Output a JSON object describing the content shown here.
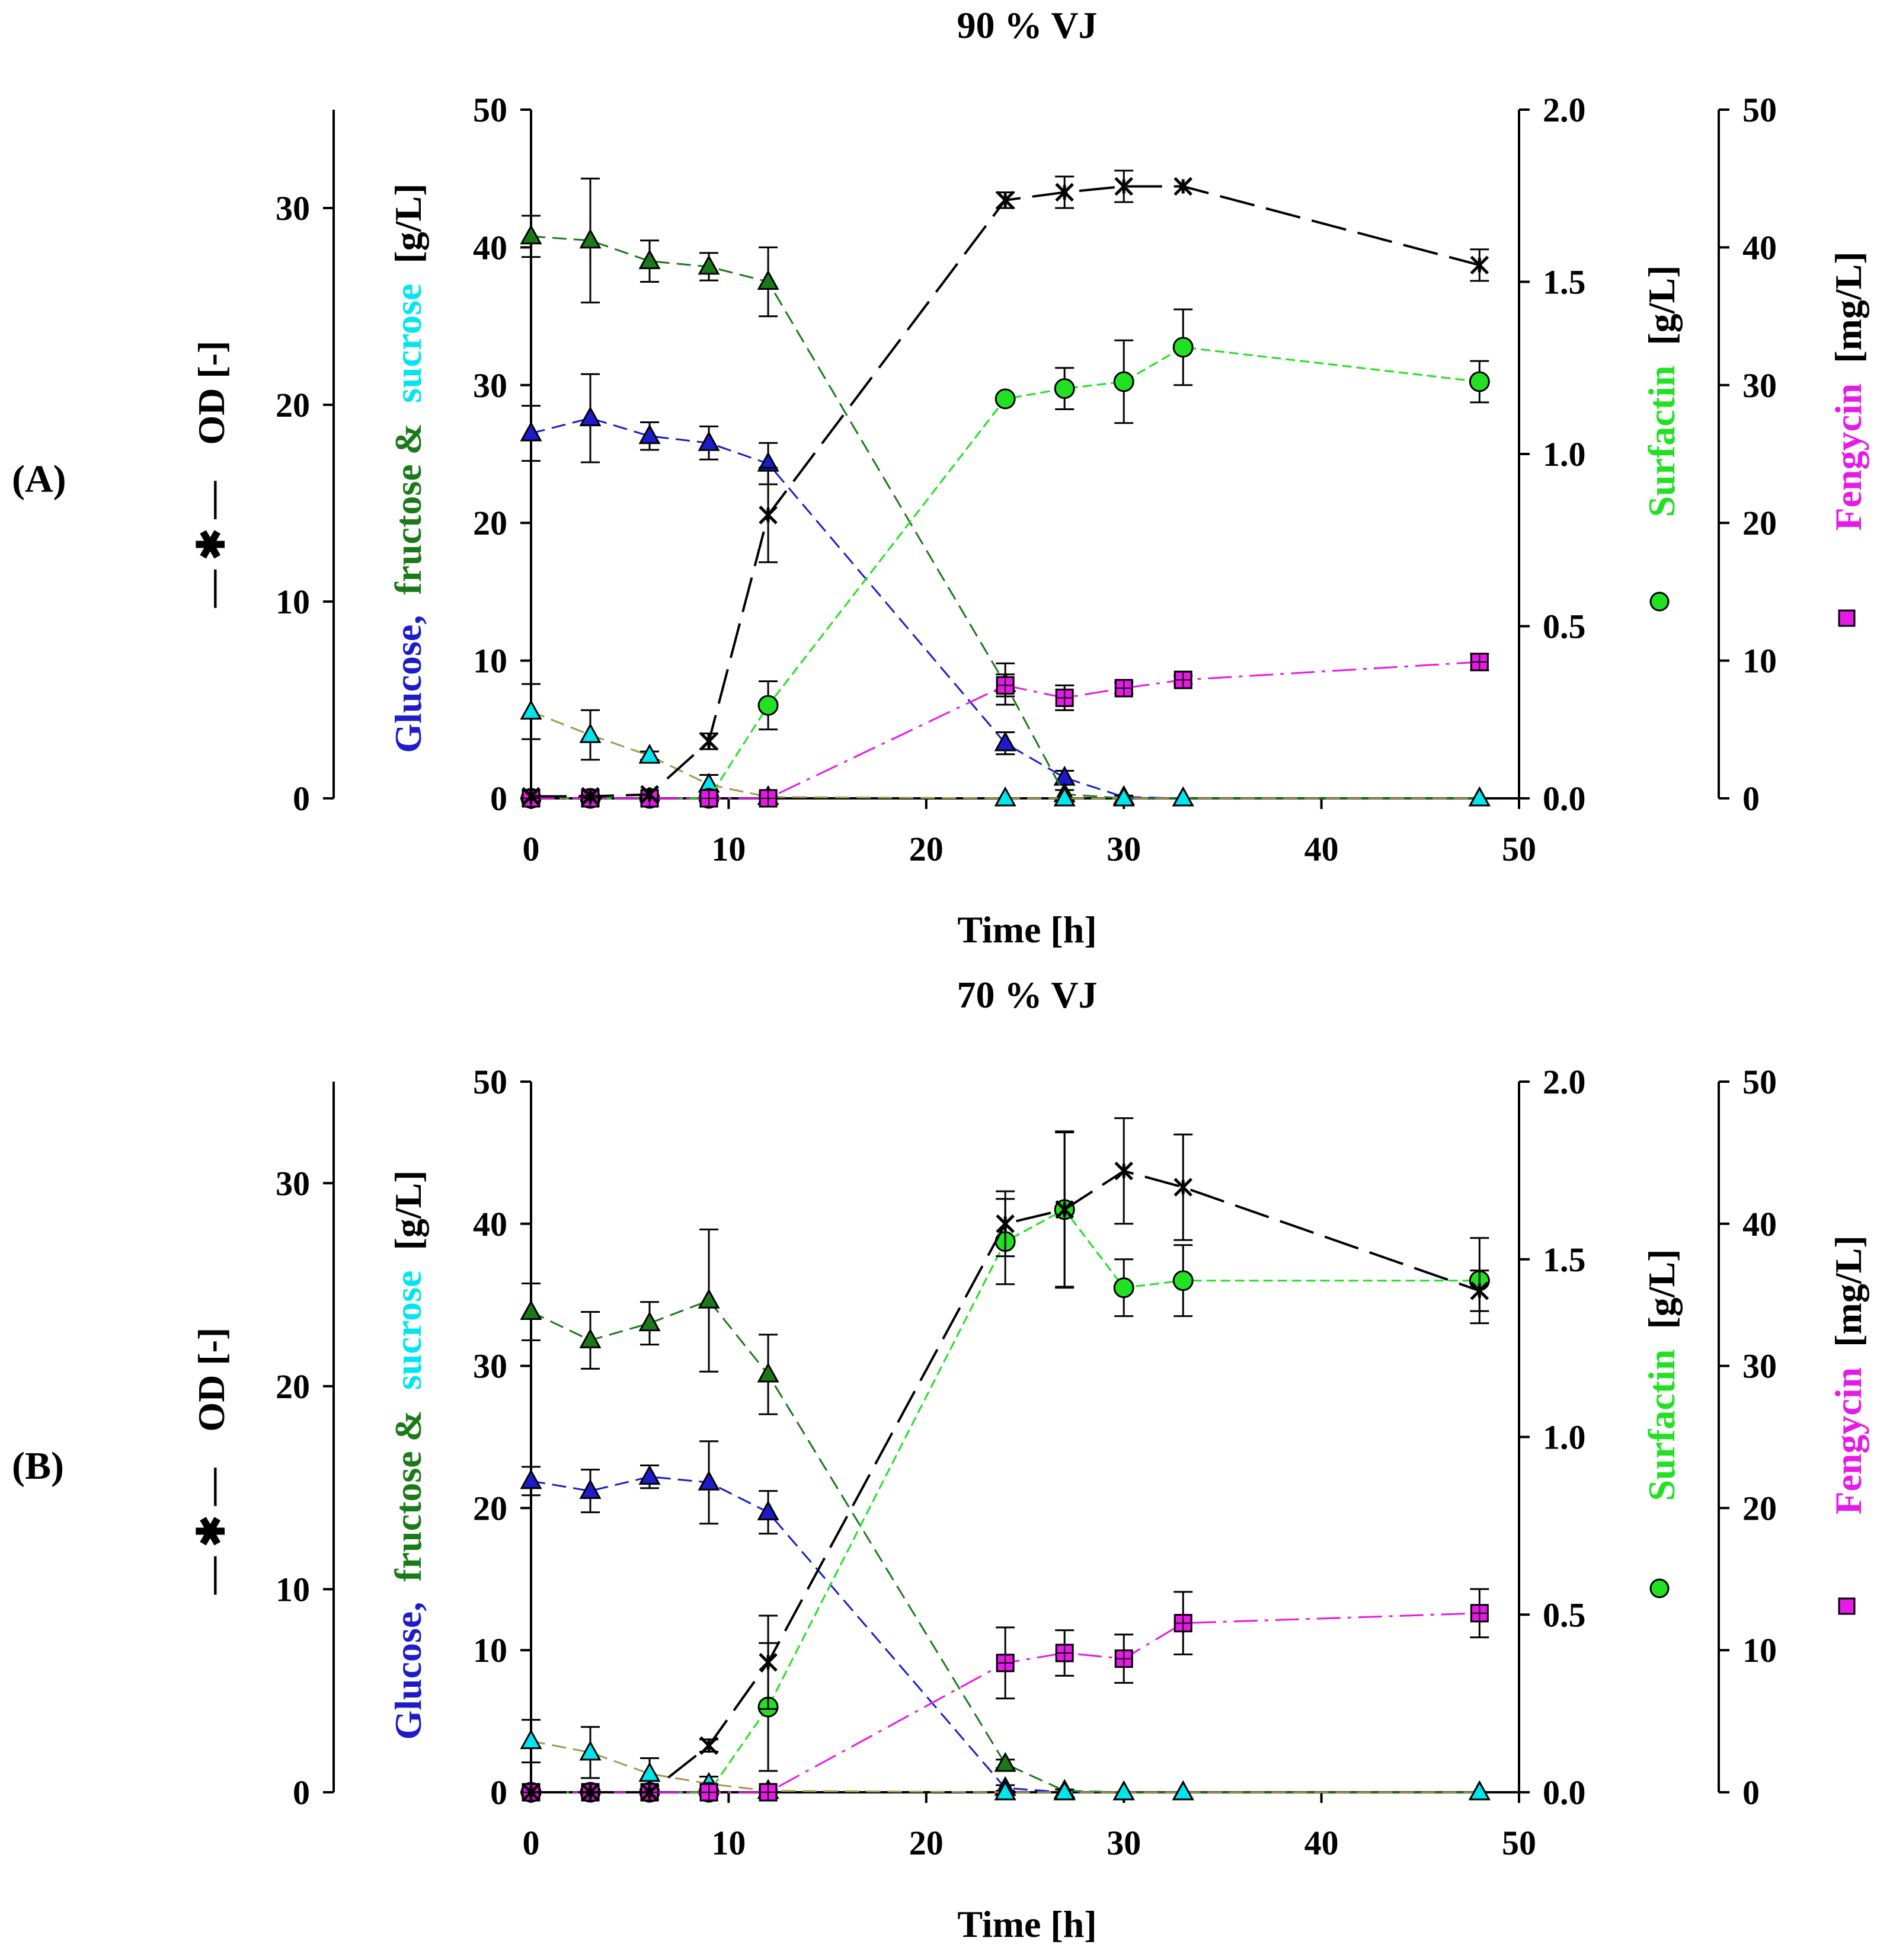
{
  "colors": {
    "glucose": "#1c1ccc",
    "fructose": "#1a7a1a",
    "sucrose": "#00e5ee",
    "sucrose_line": "#a09a4c",
    "surfactin": "#22e022",
    "fengycin": "#e61ae6",
    "od": "#000000",
    "axis": "#000000"
  },
  "legend_icons": {
    "od": "cross-marker-dashed-line-icon",
    "surfactin": "green-circle-icon",
    "fengycin": "magenta-square-icon"
  },
  "chart_data": [
    {
      "type": "line",
      "panel_label": "(A)",
      "title": "90 % VJ",
      "xlabel": "Time [h]",
      "xlim": [
        0,
        50
      ],
      "xticks": [
        "0",
        "10",
        "20",
        "30",
        "40",
        "50"
      ],
      "axes": {
        "od": {
          "label": "OD [-]",
          "legend_symbol": "— ✱ —",
          "ylim": [
            0,
            35
          ],
          "ticks": [
            "0",
            "10",
            "20",
            "30"
          ]
        },
        "sugars": {
          "label_glucose": "Glucose,",
          "label_fructose": "fructose &",
          "label_sucrose": "sucrose",
          "label_unit": "[g/L]",
          "ylim": [
            0,
            50
          ],
          "ticks": [
            "0",
            "10",
            "20",
            "30",
            "40",
            "50"
          ]
        },
        "surfactin": {
          "label": "Surfactin",
          "label_unit": "[g/L]",
          "ylim": [
            0,
            2.0
          ],
          "ticks": [
            "0.0",
            "0.5",
            "1.0",
            "1.5",
            "2.0"
          ]
        },
        "fengycin": {
          "label": "Fengycin",
          "label_unit": "[mg/L]",
          "ylim": [
            0,
            50
          ],
          "ticks": [
            "0",
            "10",
            "20",
            "30",
            "40",
            "50"
          ]
        }
      },
      "series": [
        {
          "name": "Glucose",
          "axis": "sugars",
          "marker": "triangle",
          "x": [
            0,
            3,
            6,
            9,
            12,
            24,
            27,
            30,
            33,
            48
          ],
          "values": [
            26.5,
            27.6,
            26.3,
            25.8,
            24.3,
            4.0,
            1.5,
            0.1,
            0.0,
            0.0
          ],
          "err": [
            2.0,
            3.2,
            1.0,
            1.2,
            1.5,
            0.8,
            0.5,
            0.1,
            0.0,
            0.0
          ]
        },
        {
          "name": "Fructose",
          "axis": "sugars",
          "marker": "triangle",
          "x": [
            0,
            3,
            6,
            9,
            12,
            24,
            27,
            30,
            33,
            48
          ],
          "values": [
            40.8,
            40.5,
            39.0,
            38.6,
            37.5,
            8.3,
            0.3,
            0.0,
            0.0,
            0.0
          ],
          "err": [
            1.5,
            4.5,
            1.5,
            1.0,
            2.5,
            1.5,
            0.3,
            0.0,
            0.0,
            0.0
          ]
        },
        {
          "name": "Sucrose",
          "axis": "sugars",
          "marker": "triangle",
          "x": [
            0,
            3,
            6,
            9,
            12,
            24,
            27,
            30,
            33,
            48
          ],
          "values": [
            6.3,
            4.6,
            3.1,
            1.0,
            0.1,
            0.0,
            0.0,
            0.0,
            0.0,
            0.0
          ],
          "err": [
            2.0,
            1.8,
            0.3,
            0.7,
            0.1,
            0.0,
            0.0,
            0.0,
            0.0,
            0.0
          ]
        },
        {
          "name": "Surfactin",
          "axis": "surfactin",
          "marker": "circle",
          "x": [
            0,
            3,
            6,
            9,
            12,
            24,
            27,
            30,
            33,
            48
          ],
          "values": [
            0.0,
            0.0,
            0.0,
            0.0,
            0.27,
            1.16,
            1.19,
            1.21,
            1.31,
            1.21
          ],
          "err": [
            0.0,
            0.0,
            0.0,
            0.0,
            0.07,
            0.0,
            0.06,
            0.12,
            0.11,
            0.06
          ]
        },
        {
          "name": "Fengycin",
          "axis": "fengycin",
          "marker": "square",
          "x": [
            0,
            3,
            6,
            9,
            12,
            24,
            27,
            30,
            33,
            48
          ],
          "values": [
            0.0,
            0.0,
            0.0,
            0.0,
            0.0,
            8.2,
            7.3,
            8.0,
            8.6,
            9.9
          ],
          "err": [
            0.0,
            0.0,
            0.0,
            0.0,
            0.0,
            0.8,
            0.9,
            0.4,
            0.3,
            0.6
          ]
        },
        {
          "name": "OD",
          "axis": "od",
          "marker": "cross",
          "x": [
            0,
            3,
            6,
            9,
            12,
            24,
            27,
            30,
            33,
            48
          ],
          "values": [
            0.1,
            0.1,
            0.2,
            2.9,
            14.4,
            30.4,
            30.8,
            31.1,
            31.1,
            27.1
          ],
          "err": [
            0.0,
            0.0,
            0.0,
            0.4,
            2.4,
            0.4,
            0.8,
            0.8,
            0.0,
            0.8
          ]
        }
      ]
    },
    {
      "type": "line",
      "panel_label": "(B)",
      "title": "70 % VJ",
      "xlabel": "Time [h]",
      "xlim": [
        0,
        50
      ],
      "xticks": [
        "0",
        "10",
        "20",
        "30",
        "40",
        "50"
      ],
      "axes": {
        "od": {
          "label": "OD [-]",
          "legend_symbol": "— ✱ —",
          "ylim": [
            0,
            35
          ],
          "ticks": [
            "0",
            "10",
            "20",
            "30"
          ]
        },
        "sugars": {
          "label_glucose": "Glucose,",
          "label_fructose": "fructose &",
          "label_sucrose": "sucrose",
          "label_unit": "[g/L]",
          "ylim": [
            0,
            50
          ],
          "ticks": [
            "0",
            "10",
            "20",
            "30",
            "40",
            "50"
          ]
        },
        "surfactin": {
          "label": "Surfactin",
          "label_unit": "[g/L]",
          "ylim": [
            0,
            2.0
          ],
          "ticks": [
            "0.0",
            "0.5",
            "1.0",
            "1.5",
            "2.0"
          ]
        },
        "fengycin": {
          "label": "Fengycin",
          "label_unit": "[mg/L]",
          "ylim": [
            0,
            50
          ],
          "ticks": [
            "0",
            "10",
            "20",
            "30",
            "40",
            "50"
          ]
        }
      },
      "series": [
        {
          "name": "Glucose",
          "axis": "sugars",
          "marker": "triangle",
          "x": [
            0,
            3,
            6,
            9,
            12,
            24,
            27,
            30,
            33,
            48
          ],
          "values": [
            21.9,
            21.2,
            22.2,
            21.8,
            19.7,
            0.3,
            0.0,
            0.0,
            0.0,
            0.0
          ],
          "err": [
            1.0,
            1.5,
            0.8,
            2.9,
            1.5,
            0.2,
            0.0,
            0.0,
            0.0,
            0.0
          ]
        },
        {
          "name": "Fructose",
          "axis": "sugars",
          "marker": "triangle",
          "x": [
            0,
            3,
            6,
            9,
            12,
            24,
            27,
            30,
            33,
            48
          ],
          "values": [
            33.8,
            31.8,
            33.0,
            34.6,
            29.4,
            2.0,
            0.1,
            0.0,
            0.0,
            0.0
          ],
          "err": [
            2.0,
            2.0,
            1.5,
            5.0,
            2.8,
            0.3,
            0.1,
            0.0,
            0.0,
            0.0
          ]
        },
        {
          "name": "Sucrose",
          "axis": "sugars",
          "marker": "triangle",
          "x": [
            0,
            3,
            6,
            9,
            12,
            24,
            27,
            30,
            33,
            48
          ],
          "values": [
            3.6,
            2.8,
            1.3,
            0.6,
            0.1,
            0.0,
            0.0,
            0.0,
            0.0,
            0.0
          ],
          "err": [
            1.5,
            1.8,
            1.1,
            0.5,
            0.1,
            0.0,
            0.0,
            0.0,
            0.0,
            0.0
          ]
        },
        {
          "name": "Surfactin",
          "axis": "surfactin",
          "marker": "circle",
          "x": [
            0,
            3,
            6,
            9,
            12,
            24,
            27,
            30,
            33,
            48
          ],
          "values": [
            0.0,
            0.0,
            0.0,
            0.0,
            0.24,
            1.55,
            1.64,
            1.42,
            1.44,
            1.44
          ],
          "err": [
            0.0,
            0.0,
            0.0,
            0.0,
            0.18,
            0.12,
            0.22,
            0.08,
            0.1,
            0.12
          ]
        },
        {
          "name": "Fengycin",
          "axis": "fengycin",
          "marker": "square",
          "x": [
            0,
            3,
            6,
            9,
            12,
            24,
            27,
            30,
            33,
            48
          ],
          "values": [
            0.0,
            0.0,
            0.0,
            0.0,
            0.0,
            9.1,
            9.8,
            9.4,
            11.9,
            12.6
          ],
          "err": [
            0.0,
            0.0,
            0.0,
            0.0,
            0.0,
            2.5,
            1.6,
            1.7,
            2.2,
            1.7
          ]
        },
        {
          "name": "OD",
          "axis": "od",
          "marker": "cross",
          "x": [
            0,
            3,
            6,
            9,
            12,
            24,
            27,
            30,
            33,
            48
          ],
          "values": [
            0.0,
            0.0,
            0.0,
            2.3,
            6.4,
            28.0,
            28.7,
            30.6,
            29.8,
            24.7
          ],
          "err": [
            0.0,
            0.0,
            0.0,
            0.3,
            2.3,
            1.6,
            3.8,
            2.6,
            2.6,
            1.0
          ]
        }
      ]
    }
  ]
}
